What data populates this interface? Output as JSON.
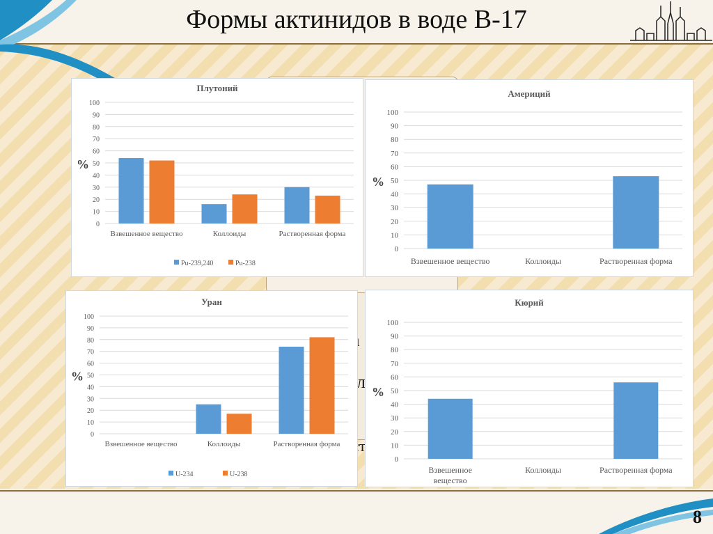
{
  "slide": {
    "title": "Формы актинидов в воде В-17",
    "page_number": "8"
  },
  "background_fragments": [
    "л",
    "а",
    "л",
    "ст"
  ],
  "chart_data": [
    {
      "id": "pu",
      "type": "bar",
      "title": "Плутоний",
      "ylabel": "%",
      "ylim": [
        0,
        100
      ],
      "yticks": [
        0,
        10,
        20,
        30,
        40,
        50,
        60,
        70,
        80,
        90,
        100
      ],
      "categories": [
        "Взвешенное вещество",
        "Коллоиды",
        "Растворенная форма"
      ],
      "series": [
        {
          "name": "Pu-239,240",
          "color": "#5b9bd5",
          "values": [
            54,
            16,
            30
          ]
        },
        {
          "name": "Pu-238",
          "color": "#ed7d31",
          "values": [
            52,
            24,
            23
          ]
        }
      ],
      "legend": "bottom"
    },
    {
      "id": "am",
      "type": "bar",
      "title": "Америций",
      "ylabel": "%",
      "ylim": [
        0,
        100
      ],
      "yticks": [
        0,
        10,
        20,
        30,
        40,
        50,
        60,
        70,
        80,
        90,
        100
      ],
      "categories": [
        "Взвешенное вещество",
        "Коллоиды",
        "Растворенная форма"
      ],
      "series": [
        {
          "name": "",
          "color": "#5b9bd5",
          "values": [
            47,
            0,
            53
          ]
        }
      ],
      "legend": "none"
    },
    {
      "id": "u",
      "type": "bar",
      "title": "Уран",
      "ylabel": "%",
      "ylim": [
        0,
        100
      ],
      "yticks": [
        0,
        10,
        20,
        30,
        40,
        50,
        60,
        70,
        80,
        90,
        100
      ],
      "categories": [
        "Взвешенное вещество",
        "Коллоиды",
        "Растворенная форма"
      ],
      "series": [
        {
          "name": "U-234",
          "color": "#5b9bd5",
          "values": [
            0,
            25,
            74
          ]
        },
        {
          "name": "U-238",
          "color": "#ed7d31",
          "values": [
            0,
            17,
            82
          ]
        }
      ],
      "legend": "bottom"
    },
    {
      "id": "cm",
      "type": "bar",
      "title": "Кюрий",
      "ylabel": "%",
      "ylim": [
        0,
        100
      ],
      "yticks": [
        0,
        10,
        20,
        30,
        40,
        50,
        60,
        70,
        80,
        90,
        100
      ],
      "categories": [
        "Взвешенное вещество",
        "Коллоиды",
        "Растворенная форма"
      ],
      "series": [
        {
          "name": "",
          "color": "#5b9bd5",
          "values": [
            44,
            0,
            56
          ]
        }
      ],
      "legend": "none"
    }
  ]
}
